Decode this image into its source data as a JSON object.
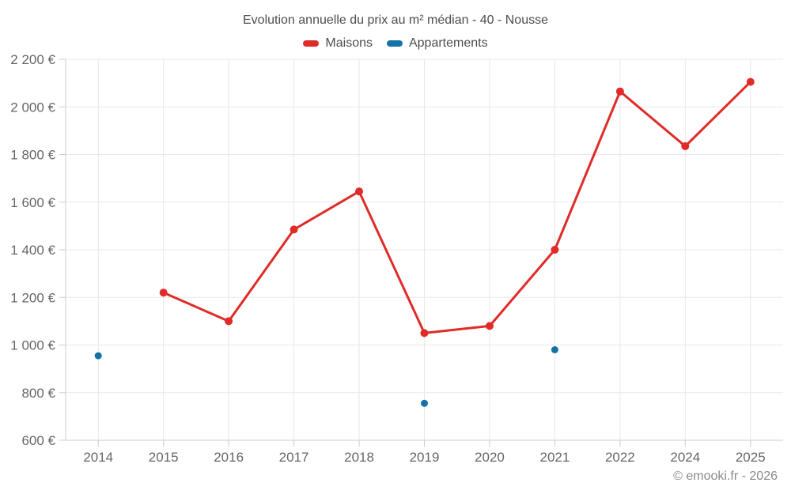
{
  "chart_data": {
    "type": "line",
    "title": "Evolution annuelle du prix au m² médian - 40 - Nousse",
    "categories": [
      "2014",
      "2015",
      "2016",
      "2017",
      "2018",
      "2019",
      "2020",
      "2021",
      "2022",
      "2024",
      "2025"
    ],
    "series": [
      {
        "name": "Maisons",
        "color": "#e02b28",
        "draw_line": true,
        "values": [
          null,
          1220,
          1100,
          1485,
          1645,
          1050,
          1080,
          1400,
          2065,
          1835,
          2105
        ]
      },
      {
        "name": "Appartements",
        "color": "#1572a8",
        "draw_line": false,
        "values": [
          955,
          null,
          null,
          null,
          null,
          755,
          null,
          980,
          null,
          null,
          null
        ]
      }
    ],
    "ylim": [
      600,
      2200
    ],
    "ytick_step": 200,
    "ytick_suffix": " €",
    "grid": true,
    "legend_position": "top",
    "xlabel": "",
    "ylabel": ""
  },
  "style": {
    "grid_color": "#e8e8e8",
    "axis_color": "#cccccc",
    "tick_label_color": "#666666",
    "background": "#ffffff"
  },
  "footer": {
    "copyright": "© emooki.fr - 2026"
  }
}
